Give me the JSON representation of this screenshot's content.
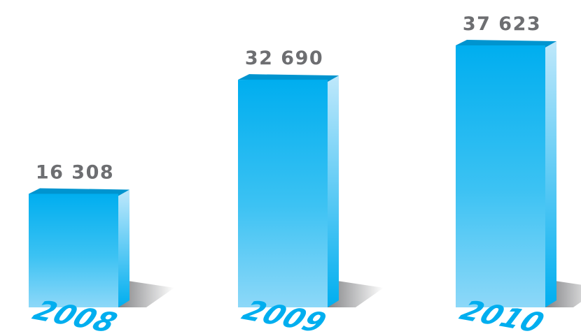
{
  "chart_data": {
    "type": "bar",
    "categories": [
      "2008",
      "2009",
      "2010"
    ],
    "values": [
      16308,
      32690,
      37623
    ],
    "value_labels": [
      "16 308",
      "32 690",
      "37 623"
    ],
    "title": "",
    "xlabel": "",
    "ylabel": "",
    "ylim": [
      0,
      40000
    ],
    "grid": false,
    "legend": "none",
    "style": "3d-box",
    "colors": {
      "bar_top": "#00aeef",
      "bar_bottom": "#8dd8f8",
      "bar_side_top": "#bfe8fb",
      "bar_side_bottom": "#00aeef",
      "value_label": "#6d6e71",
      "year_label": "#00aeef"
    }
  }
}
